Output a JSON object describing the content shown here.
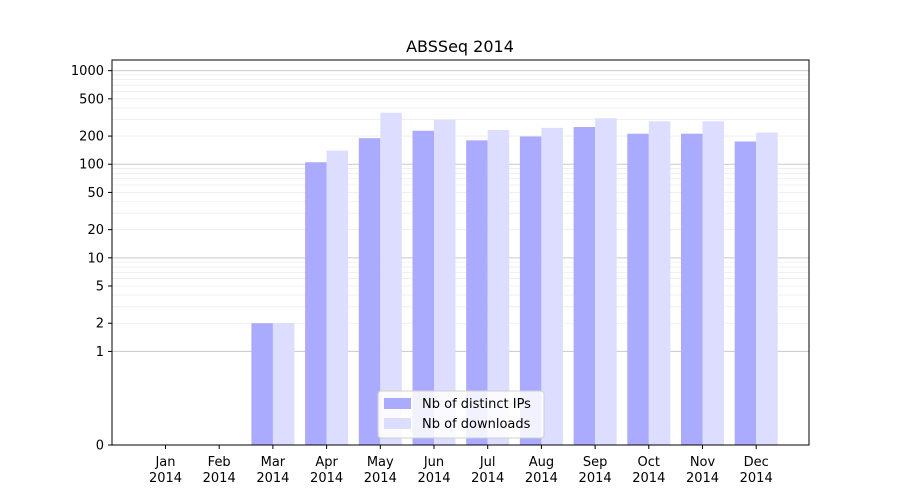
{
  "chart_data": {
    "type": "bar",
    "title": "ABSSeq 2014",
    "xlabel": "",
    "ylabel": "",
    "y_scale": "symlog",
    "ylim": [
      0,
      1300
    ],
    "y_ticks": [
      0,
      1,
      2,
      5,
      10,
      20,
      50,
      100,
      200,
      500,
      1000
    ],
    "y_tick_labels": [
      "0",
      "1",
      "2",
      "5",
      "10",
      "20",
      "50",
      "100",
      "200",
      "500",
      "1000"
    ],
    "grid": true,
    "legend_position": "bottom-center",
    "categories": [
      [
        "Jan",
        "2014"
      ],
      [
        "Feb",
        "2014"
      ],
      [
        "Mar",
        "2014"
      ],
      [
        "Apr",
        "2014"
      ],
      [
        "May",
        "2014"
      ],
      [
        "Jun",
        "2014"
      ],
      [
        "Jul",
        "2014"
      ],
      [
        "Aug",
        "2014"
      ],
      [
        "Sep",
        "2014"
      ],
      [
        "Oct",
        "2014"
      ],
      [
        "Nov",
        "2014"
      ],
      [
        "Dec",
        "2014"
      ]
    ],
    "series": [
      {
        "name": "Nb of distinct IPs",
        "color": "#aaaaff",
        "values": [
          0,
          0,
          2,
          105,
          190,
          228,
          180,
          198,
          250,
          212,
          212,
          175
        ]
      },
      {
        "name": "Nb of downloads",
        "color": "#ddddff",
        "values": [
          0,
          0,
          2,
          140,
          355,
          300,
          232,
          245,
          310,
          288,
          288,
          218
        ]
      }
    ]
  }
}
